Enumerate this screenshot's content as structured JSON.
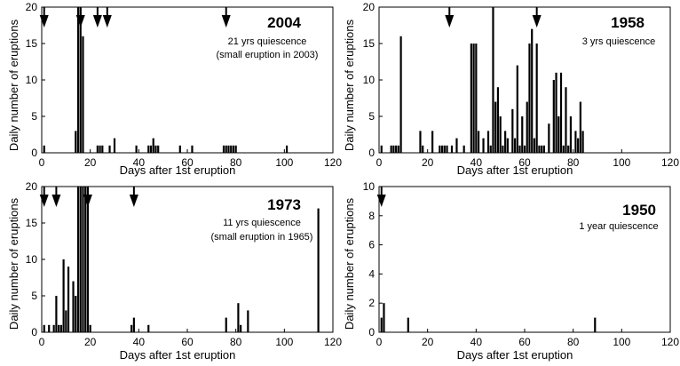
{
  "chart_data": [
    {
      "type": "bar",
      "year_label": "2004",
      "notes": [
        "21 yrs quiescence",
        "(small eruption in 2003)"
      ],
      "xlabel": "Days after 1st eruption",
      "ylabel": "Daily number of eruptions",
      "xlim": [
        0,
        120
      ],
      "ylim": [
        0,
        20
      ],
      "xticks": [
        0,
        20,
        40,
        60,
        80,
        100,
        120
      ],
      "yticks": [
        0,
        5,
        10,
        15,
        20
      ],
      "arrows_days": [
        1,
        16,
        23,
        27,
        76
      ],
      "x": [
        1,
        14,
        15,
        16,
        17,
        23,
        24,
        25,
        28,
        30,
        39,
        44,
        45,
        46,
        47,
        48,
        57,
        62,
        75,
        76,
        77,
        78,
        79,
        80,
        101
      ],
      "values": [
        1,
        3,
        20,
        20,
        16,
        1,
        1,
        1,
        1,
        2,
        1,
        1,
        1,
        2,
        1,
        1,
        1,
        1,
        1,
        1,
        1,
        1,
        1,
        1,
        1
      ]
    },
    {
      "type": "bar",
      "year_label": "1958",
      "notes": [
        "3 yrs quiescence"
      ],
      "xlabel": "Days after 1st eruption",
      "ylabel": "Daily number of eruptions",
      "xlim": [
        0,
        120
      ],
      "ylim": [
        0,
        20
      ],
      "xticks": [
        0,
        20,
        40,
        60,
        80,
        100,
        120
      ],
      "yticks": [
        0,
        5,
        10,
        15,
        20
      ],
      "arrows_days": [
        29,
        65
      ],
      "x": [
        1,
        5,
        6,
        7,
        8,
        9,
        17,
        18,
        22,
        25,
        26,
        27,
        28,
        30,
        32,
        35,
        38,
        39,
        40,
        41,
        43,
        45,
        46,
        47,
        48,
        49,
        50,
        51,
        52,
        53,
        55,
        56,
        57,
        58,
        59,
        60,
        61,
        62,
        63,
        64,
        65,
        66,
        67,
        68,
        70,
        72,
        73,
        74,
        75,
        76,
        77,
        78,
        79,
        81,
        82,
        83,
        84
      ],
      "values": [
        1,
        1,
        1,
        1,
        1,
        16,
        3,
        1,
        3,
        1,
        1,
        1,
        1,
        1,
        2,
        1,
        15,
        15,
        15,
        3,
        2,
        3,
        1,
        20,
        7,
        9,
        5,
        1,
        3,
        2,
        6,
        2,
        12,
        1,
        5,
        1,
        7,
        15,
        17,
        2,
        15,
        1,
        1,
        1,
        4,
        10,
        11,
        5,
        11,
        1,
        9,
        1,
        5,
        3,
        2,
        7,
        3
      ]
    },
    {
      "type": "bar",
      "year_label": "1973",
      "notes": [
        "11 yrs quiescence",
        "(small eruption in 1965)"
      ],
      "xlabel": "Days after 1st eruption",
      "ylabel": "Daily number of eruptions",
      "xlim": [
        0,
        120
      ],
      "ylim": [
        0,
        20
      ],
      "xticks": [
        0,
        20,
        40,
        60,
        80,
        100,
        120
      ],
      "yticks": [
        0,
        5,
        10,
        15,
        20
      ],
      "arrows_days": [
        1,
        6,
        19,
        38
      ],
      "x": [
        1,
        3,
        5,
        6,
        7,
        8,
        9,
        10,
        11,
        13,
        14,
        15,
        16,
        17,
        18,
        19,
        20,
        37,
        38,
        44,
        76,
        81,
        82,
        85,
        114
      ],
      "values": [
        1,
        1,
        1,
        5,
        1,
        1,
        10,
        3,
        9,
        7,
        5,
        20,
        20,
        20,
        20,
        20,
        1,
        1,
        2,
        1,
        2,
        4,
        1,
        3,
        17
      ]
    },
    {
      "type": "bar",
      "year_label": "1950",
      "notes": [
        "1 year quiescence"
      ],
      "xlabel": "Days after 1st eruption",
      "ylabel": "Daily number of eruptions",
      "xlim": [
        0,
        120
      ],
      "ylim": [
        0,
        10
      ],
      "xticks": [
        0,
        20,
        40,
        60,
        80,
        100,
        120
      ],
      "yticks": [
        0,
        2,
        4,
        6,
        8,
        10
      ],
      "arrows_days": [
        1
      ],
      "x": [
        1,
        2,
        12,
        89
      ],
      "values": [
        1,
        2,
        1,
        1
      ]
    }
  ]
}
